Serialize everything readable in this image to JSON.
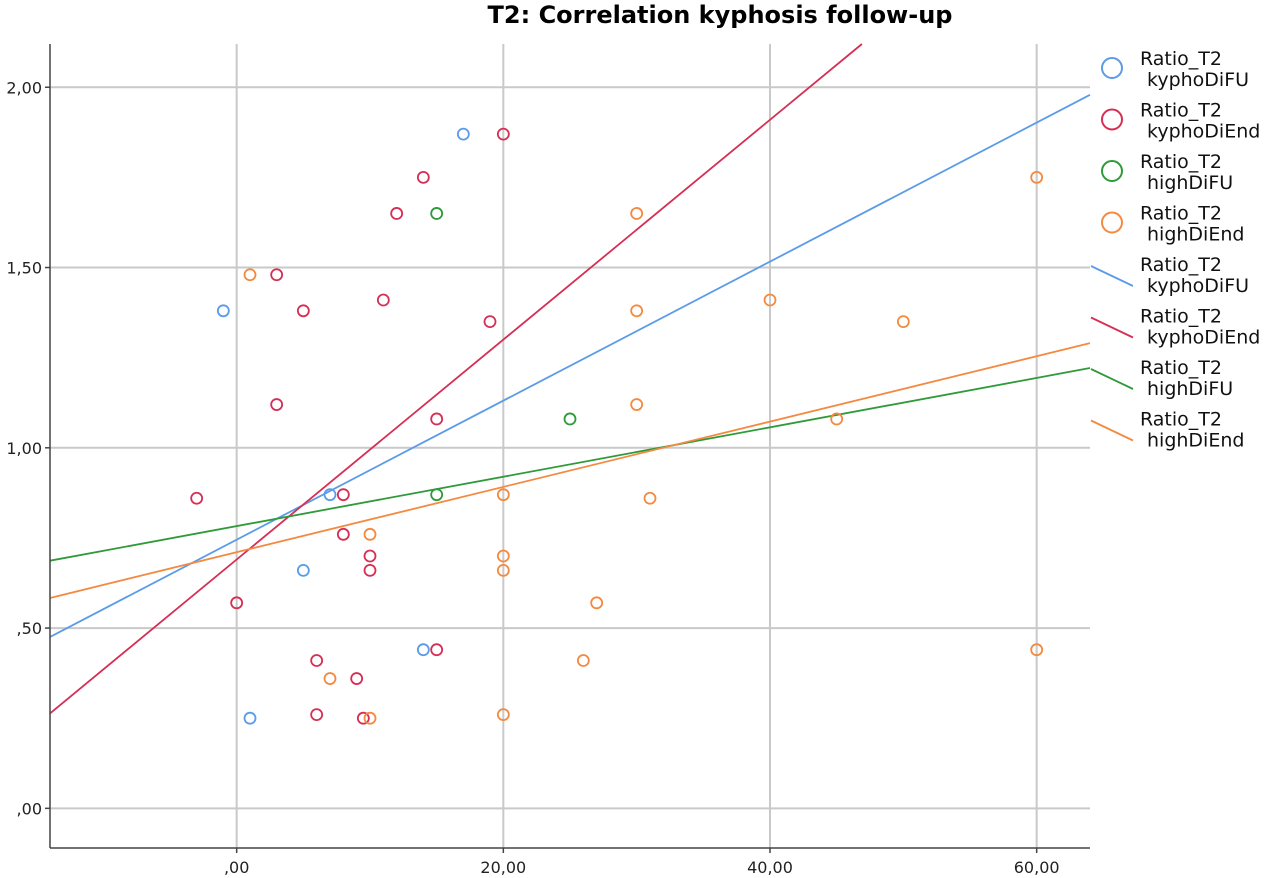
{
  "chart_data": {
    "type": "scatter",
    "title": "T2: Correlation kyphosis follow-up",
    "xlabel": "",
    "ylabel": "",
    "xlim": [
      -14,
      64
    ],
    "ylim": [
      -0.11,
      2.12
    ],
    "x_ticks": [
      {
        "value": 0,
        "label": ",00"
      },
      {
        "value": 20,
        "label": "20,00"
      },
      {
        "value": 40,
        "label": "40,00"
      },
      {
        "value": 60,
        "label": "60,00"
      }
    ],
    "y_ticks": [
      {
        "value": 0,
        "label": ",00"
      },
      {
        "value": 0.5,
        "label": ",50"
      },
      {
        "value": 1.0,
        "label": "1,00"
      },
      {
        "value": 1.5,
        "label": "1,50"
      },
      {
        "value": 2.0,
        "label": "2,00"
      }
    ],
    "grid": true,
    "legend_position": "right",
    "series": [
      {
        "name_line1": "Ratio_T2",
        "name_line2": "kyphoDiFU",
        "color": "#5b9be8",
        "points": [
          [
            -1,
            1.38
          ],
          [
            1,
            0.25
          ],
          [
            5,
            0.66
          ],
          [
            7,
            0.87
          ],
          [
            14,
            0.44
          ],
          [
            17,
            1.87
          ]
        ],
        "fit": {
          "slope": 0.01928,
          "intercept": 0.7452
        }
      },
      {
        "name_line1": "Ratio_T2",
        "name_line2": "kyphoDiEnd",
        "color": "#d62f55",
        "points": [
          [
            -3,
            0.86
          ],
          [
            0,
            0.57
          ],
          [
            3,
            1.12
          ],
          [
            3,
            1.48
          ],
          [
            5,
            1.38
          ],
          [
            6,
            0.41
          ],
          [
            6,
            0.26
          ],
          [
            8,
            0.76
          ],
          [
            8,
            0.87
          ],
          [
            9,
            0.36
          ],
          [
            9.5,
            0.25
          ],
          [
            10,
            0.66
          ],
          [
            10,
            0.7
          ],
          [
            11,
            1.41
          ],
          [
            12,
            1.65
          ],
          [
            14,
            1.75
          ],
          [
            15,
            0.44
          ],
          [
            15,
            1.08
          ],
          [
            19,
            1.35
          ],
          [
            20,
            1.87
          ]
        ],
        "fit": {
          "slope": 0.03049,
          "intercept": 0.6902
        }
      },
      {
        "name_line1": "Ratio_T2",
        "name_line2": "highDiFU",
        "color": "#2f9a3a",
        "points": [
          [
            15,
            0.87
          ],
          [
            15,
            1.65
          ],
          [
            25,
            1.08
          ]
        ],
        "fit": {
          "slope": 0.00685,
          "intercept": 0.7828
        }
      },
      {
        "name_line1": "Ratio_T2",
        "name_line2": "highDiEnd",
        "color": "#f48a40",
        "points": [
          [
            1,
            1.48
          ],
          [
            7,
            0.36
          ],
          [
            10,
            0.25
          ],
          [
            10,
            0.76
          ],
          [
            20,
            0.26
          ],
          [
            20,
            0.66
          ],
          [
            20,
            0.7
          ],
          [
            20,
            0.87
          ],
          [
            26,
            0.41
          ],
          [
            27,
            0.57
          ],
          [
            30,
            1.12
          ],
          [
            30,
            1.38
          ],
          [
            30,
            1.65
          ],
          [
            31,
            0.86
          ],
          [
            40,
            1.41
          ],
          [
            45,
            1.08
          ],
          [
            50,
            1.35
          ],
          [
            60,
            0.44
          ],
          [
            60,
            1.75
          ]
        ],
        "fit": {
          "slope": 0.00906,
          "intercept": 0.7104
        }
      }
    ]
  }
}
